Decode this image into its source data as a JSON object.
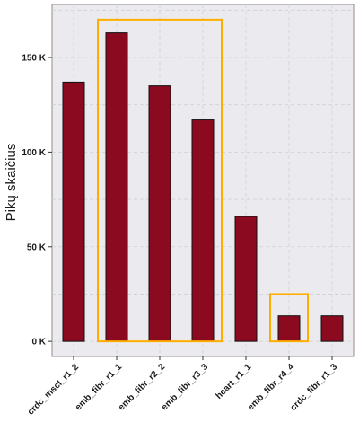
{
  "chart_data": {
    "type": "bar",
    "ylabel": "Pikų skaičius",
    "xlabel": "",
    "categories": [
      "crdc_mscl_r1_2",
      "emb_fibr_r1_1",
      "emb_fibr_r2_2",
      "emb_fibr_r3_3",
      "heart_r1_1",
      "emb_fibr_r4_4",
      "crdc_fibr_r1_3"
    ],
    "values": [
      137000,
      163000,
      135000,
      117000,
      66000,
      13500,
      13500
    ],
    "ylim": [
      -8000,
      178000
    ],
    "y_ticks": [
      0,
      50000,
      100000,
      150000
    ],
    "y_tick_labels": [
      "0 K",
      "50 K",
      "100 K",
      "150 K"
    ],
    "grid": true,
    "bar_color": "#8b0a1f",
    "panel_color": "#ebebef",
    "highlight_color": "#ffae00",
    "highlight_groups": [
      {
        "from_category": "emb_fibr_r1_1",
        "to_category": "emb_fibr_r3_3",
        "y_top": 170000
      },
      {
        "from_category": "emb_fibr_r4_4",
        "to_category": "emb_fibr_r4_4",
        "y_top": 25000
      }
    ]
  }
}
